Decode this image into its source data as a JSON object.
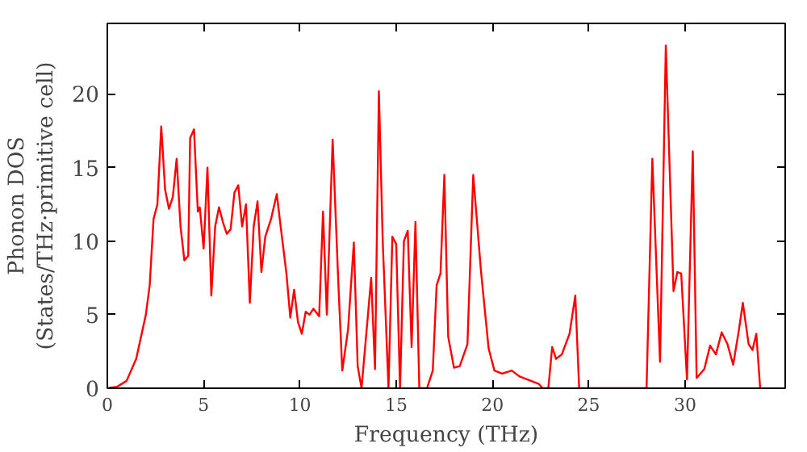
{
  "chart_data": {
    "type": "line",
    "xlabel": "Frequency (THz)",
    "ylabel": "Phonon DOS\n(States/THz·primitive cell)",
    "xlim": [
      0,
      35.2
    ],
    "ylim": [
      0,
      24.8
    ],
    "xticks": [
      0,
      5,
      10,
      15,
      20,
      25,
      30
    ],
    "yticks": [
      0,
      5,
      10,
      15,
      20
    ],
    "grid": false,
    "series": [
      {
        "color": "#ff0000",
        "x": [
          0,
          0.5,
          1,
          1.5,
          2,
          2.2,
          2.4,
          2.6,
          2.8,
          3.0,
          3.2,
          3.4,
          3.6,
          3.8,
          4.0,
          4.2,
          4.3,
          4.5,
          4.7,
          4.8,
          5.0,
          5.2,
          5.4,
          5.6,
          5.8,
          6.0,
          6.2,
          6.4,
          6.6,
          6.8,
          7.0,
          7.2,
          7.4,
          7.6,
          7.8,
          8.0,
          8.2,
          8.5,
          8.8,
          9.0,
          9.3,
          9.5,
          9.7,
          9.9,
          10.1,
          10.3,
          10.5,
          10.7,
          11.0,
          11.2,
          11.4,
          11.7,
          12.0,
          12.2,
          12.5,
          12.8,
          13.0,
          13.2,
          13.7,
          13.9,
          14.1,
          14.3,
          14.6,
          14.8,
          15.0,
          15.2,
          15.4,
          15.6,
          15.8,
          16.0,
          16.2,
          16.6,
          16.9,
          17.1,
          17.3,
          17.5,
          17.7,
          18.0,
          18.3,
          18.7,
          19.0,
          19.4,
          19.8,
          20.1,
          20.5,
          21.0,
          21.4,
          22.0,
          22.4,
          22.6,
          22.9,
          23.1,
          23.3,
          23.6,
          24.0,
          24.3,
          24.5,
          28.0,
          28.3,
          28.7,
          29.0,
          29.4,
          29.6,
          29.8,
          30.1,
          30.4,
          30.6,
          31.0,
          31.3,
          31.6,
          31.9,
          32.2,
          32.5,
          32.8,
          33.0,
          33.3,
          33.5,
          33.7,
          33.9
        ],
        "values": [
          0,
          0.1,
          0.5,
          2,
          5,
          7,
          11.5,
          12.5,
          17.8,
          13.5,
          12.2,
          13,
          15.6,
          11,
          8.7,
          9,
          17,
          17.6,
          12,
          12.3,
          9.5,
          15,
          6.3,
          11,
          12.3,
          11.3,
          10.5,
          10.8,
          13.3,
          13.8,
          11,
          12.5,
          5.8,
          11,
          12.7,
          7.9,
          10.3,
          11.5,
          13.2,
          11,
          7.8,
          4.8,
          6.7,
          4.5,
          3.7,
          5.2,
          5.0,
          5.4,
          4.9,
          12,
          5,
          16.9,
          7,
          1.2,
          4,
          9.9,
          1.5,
          0,
          7.5,
          1.3,
          20.2,
          10,
          0,
          10.3,
          9.8,
          0,
          10,
          10.7,
          2.8,
          11.3,
          0,
          0,
          1.2,
          7,
          7.8,
          14.5,
          3.5,
          1.4,
          1.5,
          3.0,
          14.5,
          8,
          2.7,
          1.2,
          1.0,
          1.2,
          0.8,
          0.5,
          0.3,
          0,
          0,
          2.8,
          2.0,
          2.3,
          3.7,
          6.3,
          0,
          0,
          15.6,
          1.8,
          23.3,
          6.6,
          7.9,
          7.8,
          0.6,
          16.1,
          0.7,
          1.3,
          2.9,
          2.3,
          3.8,
          3.0,
          1.6,
          4,
          5.8,
          3.0,
          2.6,
          3.7,
          0
        ]
      }
    ]
  }
}
